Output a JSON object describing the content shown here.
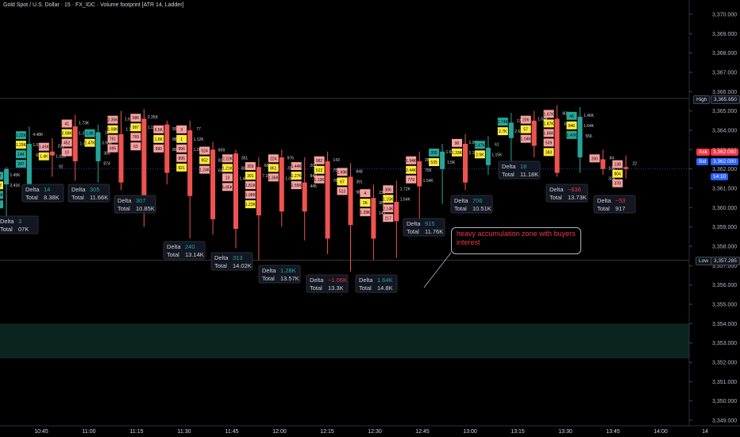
{
  "title": "Gold Spot / U.S. Dollar · 15 · FX_IDC · Volume footprint [ATR 14, Ladder]",
  "colors": {
    "bg": "#000000",
    "up": "#26a69a",
    "down": "#ef5350",
    "hi": "#ffeb3b",
    "buy_cell": "#26a69a",
    "sell_cell": "#f7a1a1"
  },
  "price_axis": [
    "3,370.000",
    "3,369.000",
    "3,368.000",
    "3,367.000",
    "3,366.000",
    "3,365.000",
    "3,364.000",
    "3,363.000",
    "3,362.000",
    "3,361.000",
    "3,360.000",
    "3,359.000",
    "3,358.000",
    "3,357.000",
    "3,356.000",
    "3,355.000",
    "3,354.000",
    "3,353.000",
    "3,352.000",
    "3,351.000",
    "3,350.000",
    "3,349.000"
  ],
  "time_axis": [
    "10:45",
    "11:00",
    "11:15",
    "11:30",
    "11:45",
    "12:00",
    "12:15",
    "12:30",
    "12:45",
    "13:00",
    "13:15",
    "13:30",
    "13:45",
    "14:00",
    "14"
  ],
  "tags": {
    "high": {
      "label": "High",
      "value": "3,365.650"
    },
    "ask": {
      "label": "Ask",
      "value": "3,362.090"
    },
    "bid": {
      "label": "Bid",
      "value": "3,362.000"
    },
    "countdown": "14:10",
    "low": {
      "label": "Low",
      "value": "3,357.285"
    }
  },
  "annotation": "heavy accumulation zone with buyers interest",
  "summaries": [
    {
      "delta": "3",
      "total": "07K"
    },
    {
      "delta": "14",
      "total": "8.38K"
    },
    {
      "delta": "305",
      "total": "11.66K"
    },
    {
      "delta": "307",
      "total": "10.85K"
    },
    {
      "delta": "240",
      "total": "13.14K"
    },
    {
      "delta": "313",
      "total": "14.02K"
    },
    {
      "delta": "1.28K",
      "total": "13.57K"
    },
    {
      "delta": "−1.06K",
      "total": "13.3K"
    },
    {
      "delta": "1.64K",
      "total": "14.8K"
    },
    {
      "delta": "915",
      "total": "11.76K"
    },
    {
      "delta": "706",
      "total": "10.51K"
    },
    {
      "delta": "18",
      "total": "11.18K"
    },
    {
      "delta": "−636",
      "total": "13.73K"
    },
    {
      "delta": "−53",
      "total": "917"
    }
  ],
  "summary_labels": {
    "delta": "Delta",
    "total": "Total"
  },
  "chart_data": {
    "type": "footprint",
    "ylim": [
      3348.8,
      3370.5
    ],
    "candles": [
      {
        "time": "10:30",
        "open": 3361.2,
        "high": 3362.1,
        "low": 3359.5,
        "close": 3362.0,
        "bid": [
          "517",
          "663",
          "1.56K",
          "40"
        ],
        "ask": [
          "1.45K",
          "2.41K"
        ]
      },
      {
        "time": "10:45",
        "open": 3361.0,
        "high": 3364.2,
        "low": 3360.7,
        "close": 3363.3,
        "bid": [
          "1.22K",
          "1.29K",
          "144",
          "297"
        ],
        "ask": [
          "4.48K",
          "1.01K",
          "92"
        ]
      },
      {
        "time": "10:50",
        "open": 3362.9,
        "high": 3363.6,
        "low": 3361.6,
        "close": 3362.7,
        "bid": [
          "1.45K",
          "1.4K"
        ],
        "ask": [
          "231",
          "1.02K",
          "92"
        ]
      },
      {
        "time": "11:00",
        "open": 3364.2,
        "high": 3364.8,
        "low": 3361.4,
        "close": 3362.4,
        "bid": [
          "41",
          "2.69K",
          "452",
          "10"
        ],
        "ask": [
          "1.73K",
          "1.37K",
          "1.4K"
        ]
      },
      {
        "time": "11:05",
        "open": 3362.4,
        "high": 3364.3,
        "low": 3361.3,
        "close": 3363.9,
        "bid": [
          "1.8K",
          "1.47K"
        ],
        "ask": [
          "18",
          "3.98K",
          "365",
          "874"
        ]
      },
      {
        "time": "11:10",
        "open": 3363.8,
        "high": 3365.0,
        "low": 3360.9,
        "close": 3361.3,
        "bid": [
          "2.35K",
          "1.08K",
          "761",
          "695"
        ],
        "ask": [
          "1.67K",
          "1.1K"
        ]
      },
      {
        "time": "11:15",
        "open": 3364.6,
        "high": 3365.1,
        "low": 3359.0,
        "close": 3360.0,
        "bid": [
          "586",
          "997",
          "769",
          "63"
        ],
        "ask": [
          "2.35K",
          "1.12K"
        ]
      },
      {
        "time": "11:20",
        "open": 3364.3,
        "high": 3364.5,
        "low": 3361.2,
        "close": 3361.8,
        "bid": [
          "6.5K",
          "1.8K",
          "990"
        ],
        "ask": [
          "554",
          "888",
          "892"
        ]
      },
      {
        "time": "11:30",
        "open": 3364.0,
        "high": 3364.5,
        "low": 3358.4,
        "close": 3360.6,
        "bid": [
          "3",
          "1",
          "996",
          "895",
          "821"
        ],
        "ask": [
          "77",
          "1.12K",
          "1.06K"
        ]
      },
      {
        "time": "11:35",
        "open": 3363.0,
        "high": 3363.4,
        "low": 3358.6,
        "close": 3359.4,
        "bid": [
          "524",
          "952",
          "1.24K"
        ],
        "ask": [
          "859",
          "835",
          "696"
        ]
      },
      {
        "time": "11:45",
        "open": 3362.8,
        "high": 3363.0,
        "low": 3357.9,
        "close": 3358.9,
        "bid": [
          "2.22K",
          "1.21K",
          "13",
          "6.85K"
        ],
        "ask": [
          "351",
          "801",
          "1.48K"
        ]
      },
      {
        "time": "11:50",
        "open": 3362.1,
        "high": 3362.6,
        "low": 3357.3,
        "close": 3359.6,
        "bid": [
          "359",
          "391",
          "1.81K",
          "1.98K",
          "1.23K"
        ],
        "ask": [
          "662",
          "7.16K"
        ]
      },
      {
        "time": "11:55",
        "open": 3362.6,
        "high": 3363.0,
        "low": 3359.0,
        "close": 3359.8,
        "bid": [
          "224",
          "851",
          "1.36K"
        ],
        "ask": [
          "976",
          "781",
          "1.08K"
        ]
      },
      {
        "time": "12:00",
        "open": 3361.3,
        "high": 3362.6,
        "low": 3358.3,
        "close": 3359.8,
        "bid": [
          "1.44K",
          "1.27K",
          "1.55K"
        ],
        "ask": [
          "209",
          "843",
          "445"
        ]
      },
      {
        "time": "12:05",
        "open": 3362.4,
        "high": 3362.9,
        "low": 3357.6,
        "close": 3358.4,
        "bid": [
          "982",
          "522",
          "1.13K"
        ],
        "ask": [
          "143",
          "756",
          "781"
        ]
      },
      {
        "time": "12:15",
        "open": 3361.6,
        "high": 3362.3,
        "low": 3356.7,
        "close": 3359.1,
        "bid": [
          "1.69K",
          "67",
          "513"
        ],
        "ask": [
          "848",
          "391",
          "981"
        ]
      },
      {
        "time": "12:20",
        "open": 3360.5,
        "high": 3361.2,
        "low": 3357.3,
        "close": 3358.4,
        "bid": [
          "4",
          "2K",
          "1.39K"
        ],
        "ask": [
          "239",
          "957",
          "141"
        ]
      },
      {
        "time": "12:30",
        "open": 3360.3,
        "high": 3361.4,
        "low": 3357.4,
        "close": 3359.3,
        "bid": [
          "306",
          "1.15K",
          "2.14K",
          "217"
        ],
        "ask": [
          "1.72K",
          "1.54K"
        ]
      },
      {
        "time": "12:45",
        "open": 3362.4,
        "high": 3362.9,
        "low": 3359.1,
        "close": 3361.1,
        "bid": [
          "1.94K",
          "2.44K",
          "779"
        ],
        "ask": [
          "287",
          "756",
          "1.54K"
        ]
      },
      {
        "time": "12:50",
        "open": 3362.0,
        "high": 3363.3,
        "low": 3360.2,
        "close": 3362.9,
        "bid": [
          "355",
          "535"
        ],
        "ask": [
          "1.65K",
          "1.5K"
        ]
      },
      {
        "time": "13:00",
        "open": 3363.3,
        "high": 3363.8,
        "low": 3360.9,
        "close": 3361.3,
        "bid": [
          "90",
          "1.33K"
        ],
        "ask": [
          "1.08K",
          "1.15K"
        ]
      },
      {
        "time": "13:05",
        "open": 3362.2,
        "high": 3363.7,
        "low": 3361.7,
        "close": 3363.1,
        "bid": [
          "1.47K",
          "2.9K"
        ],
        "ask": [
          "61",
          "1.15K"
        ]
      },
      {
        "time": "13:15",
        "open": 3363.6,
        "high": 3364.9,
        "low": 3362.3,
        "close": 3364.4,
        "bid": [
          "2.74K",
          "2.7K"
        ],
        "ask": [
          "178",
          "2.62K"
        ]
      },
      {
        "time": "13:20",
        "open": 3364.5,
        "high": 3365.0,
        "low": 3362.6,
        "close": 3363.2,
        "bid": [
          "206",
          "57",
          "1.04K"
        ],
        "ask": [
          "1.04K"
        ]
      },
      {
        "time": "13:30",
        "open": 3364.6,
        "high": 3365.3,
        "low": 3361.6,
        "close": 3361.8,
        "bid": [
          "1.67K",
          "1.87K",
          "1.86K",
          "509",
          "383"
        ],
        "ask": [
          "800",
          "34"
        ]
      },
      {
        "time": "13:35",
        "open": 3362.6,
        "high": 3365.2,
        "low": 3361.8,
        "close": 3364.7,
        "bid": [
          "46",
          "846",
          "1.47K"
        ],
        "ask": [
          "1.46K",
          "1.64K",
          "556"
        ]
      },
      {
        "time": "13:45",
        "open": 3362.5,
        "high": 3363.0,
        "low": 3361.7,
        "close": 3362.0,
        "bid": [
          "260"
        ],
        "ask": [
          "84",
          "102",
          "324"
        ]
      },
      {
        "time": "13:50",
        "open": 3362.1,
        "high": 3362.7,
        "low": 3361.5,
        "close": 3362.0,
        "bid": [
          "138",
          "804",
          "378"
        ],
        "ask": [
          "22"
        ]
      }
    ],
    "accumulation_zone": [
      3352.2,
      3354.0
    ]
  }
}
